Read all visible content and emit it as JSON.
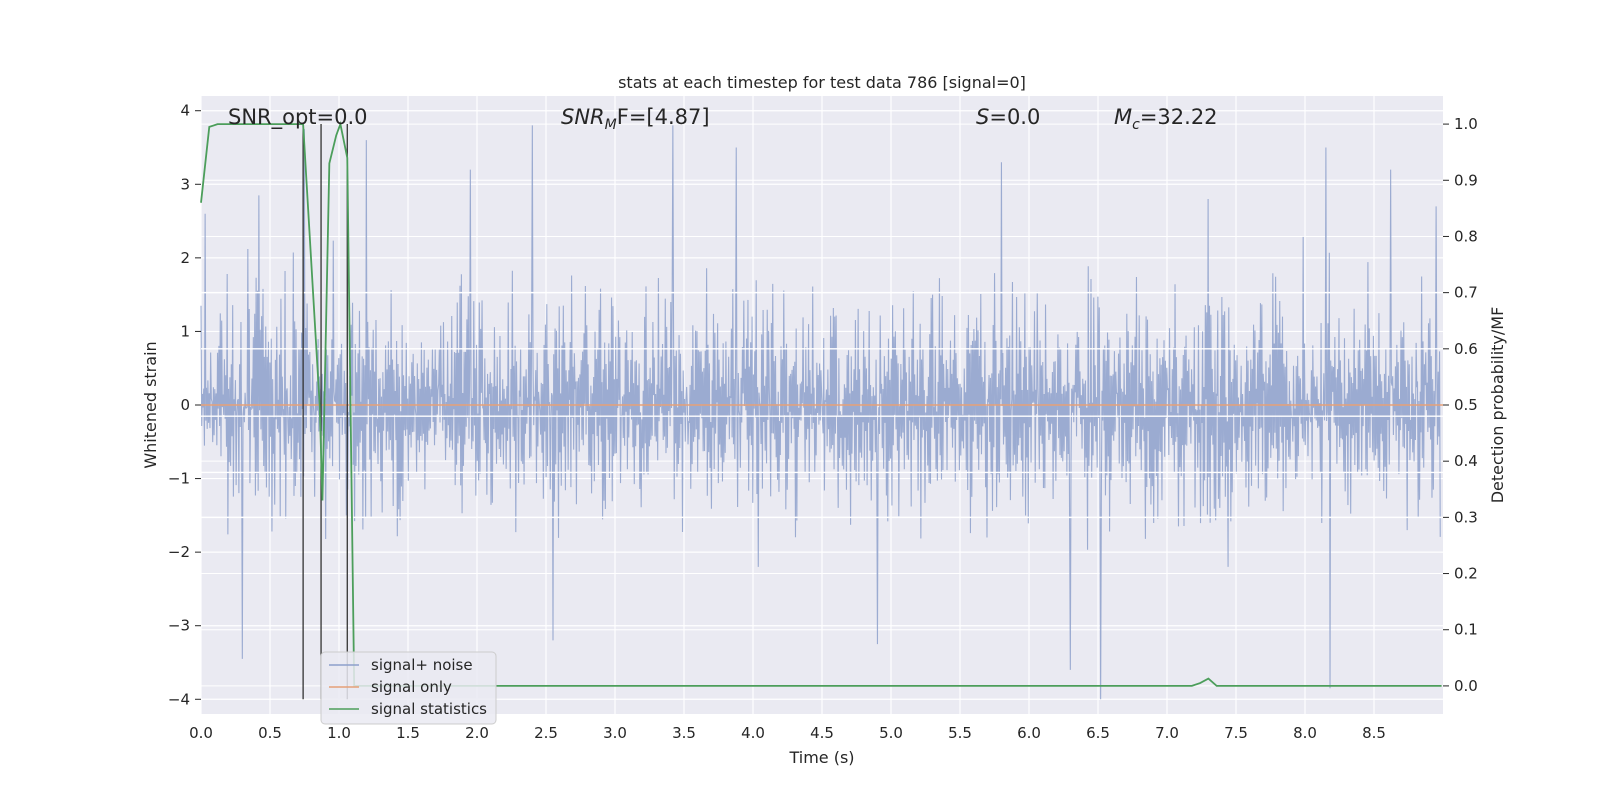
{
  "chart_data": {
    "type": "line",
    "title": "stats at each timestep for test data 786 [signal=0]",
    "xlabel": "Time (s)",
    "ylabel_left": "Whitened strain",
    "ylabel_right": "Detection probability/MF",
    "xlim": [
      0.0,
      9.0
    ],
    "ylim_left": [
      -4.2,
      4.2
    ],
    "ylim_right": [
      -0.05,
      1.05
    ],
    "x_ticks": [
      0.0,
      0.5,
      1.0,
      1.5,
      2.0,
      2.5,
      3.0,
      3.5,
      4.0,
      4.5,
      5.0,
      5.5,
      6.0,
      6.5,
      7.0,
      7.5,
      8.0,
      8.5
    ],
    "x_tick_labels": [
      "0.0",
      "0.5",
      "1.0",
      "1.5",
      "2.0",
      "2.5",
      "3.0",
      "3.5",
      "4.0",
      "4.5",
      "5.0",
      "5.5",
      "6.0",
      "6.5",
      "7.0",
      "7.5",
      "8.0",
      "8.5"
    ],
    "y_left_ticks": [
      -4,
      -3,
      -2,
      -1,
      0,
      1,
      2,
      3,
      4
    ],
    "y_left_tick_labels": [
      "−4",
      "−3",
      "−2",
      "−1",
      "0",
      "1",
      "2",
      "3",
      "4"
    ],
    "y_right_ticks": [
      0.0,
      0.1,
      0.2,
      0.3,
      0.4,
      0.5,
      0.6,
      0.7,
      0.8,
      0.9,
      1.0
    ],
    "y_right_tick_labels": [
      "0.0",
      "0.1",
      "0.2",
      "0.3",
      "0.4",
      "0.5",
      "0.6",
      "0.7",
      "0.8",
      "0.9",
      "1.0"
    ],
    "grid": true,
    "legend_position": "lower-left",
    "annotations": {
      "snr_opt": "SNR_opt=0.0",
      "snr_mf_main": "SNR",
      "snr_mf_sub": "M",
      "snr_mf_rest": "F=[4.87]",
      "s_main": "S",
      "s_rest": "=0.0",
      "mc_main": "M",
      "mc_sub": "c",
      "mc_rest": "=32.22"
    },
    "series": [
      {
        "name": "signal+ noise",
        "color": "#8da0cb",
        "axis": "left",
        "description_stats": {
          "typical_abs_max": 1.6,
          "peak_max": 3.85,
          "peak_min": -4.0
        },
        "peaks": [
          [
            0.03,
            2.6
          ],
          [
            0.3,
            -3.45
          ],
          [
            0.42,
            2.85
          ],
          [
            0.75,
            3.75
          ],
          [
            1.2,
            3.6
          ],
          [
            1.95,
            3.2
          ],
          [
            2.4,
            3.8
          ],
          [
            2.55,
            -3.2
          ],
          [
            3.42,
            3.8
          ],
          [
            3.88,
            3.5
          ],
          [
            4.9,
            -3.25
          ],
          [
            5.8,
            3.3
          ],
          [
            6.3,
            -3.6
          ],
          [
            6.52,
            -4.0
          ],
          [
            7.3,
            2.8
          ],
          [
            8.15,
            3.5
          ],
          [
            8.18,
            -3.85
          ],
          [
            8.62,
            3.2
          ],
          [
            8.95,
            2.7
          ]
        ]
      },
      {
        "name": "signal only",
        "color": "#e5a078",
        "axis": "left",
        "x": [
          0.0,
          9.0
        ],
        "y": [
          0.0,
          0.0
        ]
      },
      {
        "name": "signal statistics",
        "color": "#4c9e5b",
        "axis": "right",
        "x": [
          0.0,
          0.06,
          0.12,
          0.62,
          0.74,
          0.86,
          0.88,
          0.93,
          0.98,
          1.01,
          1.06,
          1.11,
          1.16,
          7.18,
          7.24,
          7.3,
          7.36,
          7.42,
          8.99
        ],
        "y": [
          0.86,
          0.995,
          1.0,
          1.0,
          1.0,
          0.5,
          0.33,
          0.93,
          0.98,
          1.0,
          0.94,
          0.0,
          0.0,
          0.0,
          0.005,
          0.013,
          0.0,
          0.0,
          0.0
        ]
      }
    ],
    "vertical_markers": [
      {
        "x": 0.74,
        "y_from": -4.0,
        "y_to": 3.82
      },
      {
        "x": 0.87,
        "y_from": -4.0,
        "y_to": 3.82
      },
      {
        "x": 1.06,
        "y_from": -4.0,
        "y_to": 3.82
      }
    ],
    "horizontal_lines_right_axis": [
      0.7,
      0.6,
      0.48,
      0.38,
      0.3
    ]
  }
}
